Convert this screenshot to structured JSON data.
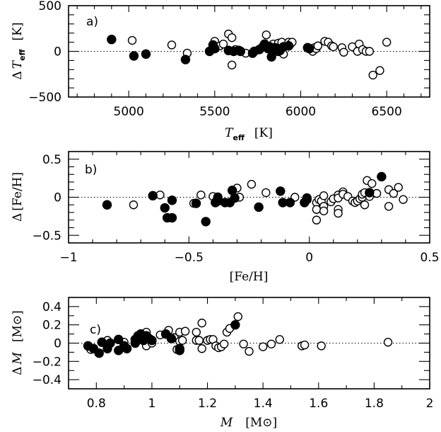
{
  "chart_data": [
    {
      "type": "scatter",
      "panel_label": "a)",
      "xlabel_main": "T",
      "xlabel_sub": "eff",
      "xlabel_unit": "[K]",
      "ylabel_prefix": "Δ",
      "ylabel_main": "T",
      "ylabel_sub": "eff",
      "ylabel_unit": "[K]",
      "xlim": [
        4650,
        6750
      ],
      "ylim": [
        -500,
        500
      ],
      "xticks_major": [
        5000,
        5500,
        6000,
        6500
      ],
      "xtick_labels": [
        "5000",
        "5500",
        "6000",
        "6500"
      ],
      "xtick_minor_step": 100,
      "yticks_major": [
        -500,
        0,
        500
      ],
      "ytick_labels": [
        "−500",
        "0",
        "500"
      ],
      "ytick_minor_step": 100,
      "reference_line": 0,
      "series": [
        {
          "name": "filled",
          "marker": "filled-circle",
          "points": [
            [
              4900,
              130
            ],
            [
              5030,
              -50
            ],
            [
              5100,
              -30
            ],
            [
              5330,
              -90
            ],
            [
              5470,
              0
            ],
            [
              5490,
              70
            ],
            [
              5500,
              30
            ],
            [
              5580,
              10
            ],
            [
              5610,
              0
            ],
            [
              5640,
              10
            ],
            [
              5650,
              0
            ],
            [
              5720,
              -20
            ],
            [
              5730,
              0
            ],
            [
              5760,
              20
            ],
            [
              5780,
              50
            ],
            [
              5790,
              80
            ],
            [
              5800,
              60
            ],
            [
              5810,
              30
            ],
            [
              5820,
              50
            ],
            [
              5830,
              -60
            ],
            [
              5840,
              20
            ],
            [
              5850,
              40
            ],
            [
              5870,
              0
            ],
            [
              5880,
              10
            ],
            [
              5900,
              50
            ],
            [
              5930,
              60
            ],
            [
              6040,
              40
            ],
            [
              6050,
              30
            ]
          ]
        },
        {
          "name": "open",
          "marker": "open-circle",
          "points": [
            [
              5020,
              120
            ],
            [
              5250,
              70
            ],
            [
              5340,
              -20
            ],
            [
              5500,
              110
            ],
            [
              5530,
              60
            ],
            [
              5550,
              80
            ],
            [
              5580,
              190
            ],
            [
              5600,
              150
            ],
            [
              5600,
              -150
            ],
            [
              5620,
              20
            ],
            [
              5680,
              -20
            ],
            [
              5800,
              180
            ],
            [
              5840,
              80
            ],
            [
              5870,
              90
            ],
            [
              5890,
              100
            ],
            [
              5900,
              -30
            ],
            [
              5930,
              100
            ],
            [
              5940,
              80
            ],
            [
              5950,
              100
            ],
            [
              6060,
              30
            ],
            [
              6070,
              0
            ],
            [
              6080,
              40
            ],
            [
              6090,
              30
            ],
            [
              6100,
              60
            ],
            [
              6140,
              110
            ],
            [
              6160,
              100
            ],
            [
              6180,
              60
            ],
            [
              6190,
              50
            ],
            [
              6240,
              40
            ],
            [
              6250,
              -10
            ],
            [
              6300,
              50
            ],
            [
              6330,
              0
            ],
            [
              6340,
              80
            ],
            [
              6360,
              20
            ],
            [
              6380,
              0
            ],
            [
              6400,
              0
            ],
            [
              6420,
              -260
            ],
            [
              6460,
              -210
            ],
            [
              6500,
              100
            ]
          ]
        }
      ]
    },
    {
      "type": "scatter",
      "panel_label": "b)",
      "xlabel": "[Fe/H]",
      "ylabel_prefix": "Δ",
      "ylabel": "[Fe/H]",
      "xlim": [
        -1.0,
        0.5
      ],
      "ylim": [
        -0.6,
        0.6
      ],
      "xticks_major": [
        -1,
        -0.5,
        0,
        0.5
      ],
      "xtick_labels": [
        "−1",
        "−0.5",
        "0",
        "0.5"
      ],
      "xtick_minor_step": 0.1,
      "yticks_major": [
        -0.5,
        0,
        0.5
      ],
      "ytick_labels": [
        "−0.5",
        "0",
        "0.5"
      ],
      "ytick_minor_step": 0.1,
      "reference_line": 0,
      "series": [
        {
          "name": "filled",
          "marker": "filled-circle",
          "points": [
            [
              -0.84,
              -0.1
            ],
            [
              -0.65,
              0.02
            ],
            [
              -0.6,
              -0.14
            ],
            [
              -0.59,
              -0.27
            ],
            [
              -0.57,
              -0.27
            ],
            [
              -0.57,
              -0.04
            ],
            [
              -0.47,
              -0.08
            ],
            [
              -0.43,
              -0.32
            ],
            [
              -0.39,
              -0.07
            ],
            [
              -0.38,
              0.0
            ],
            [
              -0.38,
              -0.05
            ],
            [
              -0.35,
              -0.07
            ],
            [
              -0.33,
              -0.07
            ],
            [
              -0.32,
              0.09
            ],
            [
              -0.31,
              -0.01
            ],
            [
              -0.21,
              -0.13
            ],
            [
              -0.12,
              0.08
            ],
            [
              -0.11,
              -0.07
            ],
            [
              -0.08,
              -0.07
            ],
            [
              -0.02,
              -0.07
            ],
            [
              -0.01,
              -0.03
            ],
            [
              -0.01,
              -0.01
            ],
            [
              0.25,
              0.06
            ],
            [
              0.3,
              0.27
            ]
          ]
        },
        {
          "name": "open",
          "marker": "open-circle",
          "points": [
            [
              -0.73,
              -0.1
            ],
            [
              -0.62,
              0.03
            ],
            [
              -0.48,
              -0.08
            ],
            [
              -0.47,
              -0.08
            ],
            [
              -0.45,
              0.03
            ],
            [
              -0.4,
              0.01
            ],
            [
              -0.39,
              -0.06
            ],
            [
              -0.3,
              0.12
            ],
            [
              -0.29,
              0.0
            ],
            [
              -0.24,
              0.17
            ],
            [
              -0.18,
              0.06
            ],
            [
              -0.06,
              0.0
            ],
            [
              0.03,
              -0.07
            ],
            [
              0.03,
              -0.16
            ],
            [
              0.03,
              -0.3
            ],
            [
              0.04,
              -0.03
            ],
            [
              0.05,
              -0.05
            ],
            [
              0.06,
              0.02
            ],
            [
              0.06,
              -0.12
            ],
            [
              0.06,
              -0.18
            ],
            [
              0.09,
              -0.06
            ],
            [
              0.1,
              -0.02
            ],
            [
              0.12,
              0.03
            ],
            [
              0.12,
              -0.01
            ],
            [
              0.12,
              -0.16
            ],
            [
              0.12,
              -0.21
            ],
            [
              0.14,
              0.07
            ],
            [
              0.14,
              0.04
            ],
            [
              0.16,
              0.01
            ],
            [
              0.18,
              -0.05
            ],
            [
              0.19,
              -0.07
            ],
            [
              0.2,
              -0.05
            ],
            [
              0.21,
              -0.02
            ],
            [
              0.22,
              0.0
            ],
            [
              0.22,
              0.04
            ],
            [
              0.23,
              0.06
            ],
            [
              0.23,
              -0.1
            ],
            [
              0.24,
              0.22
            ],
            [
              0.25,
              0.01
            ],
            [
              0.26,
              0.18
            ],
            [
              0.28,
              0.05
            ],
            [
              0.33,
              0.1
            ],
            [
              0.33,
              -0.12
            ],
            [
              0.35,
              0.05
            ],
            [
              0.37,
              0.13
            ],
            [
              0.39,
              -0.03
            ]
          ]
        }
      ]
    },
    {
      "type": "scatter",
      "panel_label": "c)",
      "xlabel_main": "M",
      "xlabel_unit": "[M⊙]",
      "ylabel_prefix": "Δ",
      "ylabel_main": "M",
      "ylabel_unit": "[M⊙]",
      "xlim": [
        0.7,
        2.0
      ],
      "ylim": [
        -0.5,
        0.5
      ],
      "xticks_major": [
        0.8,
        1.0,
        1.2,
        1.4,
        1.6,
        1.8,
        2.0
      ],
      "xtick_labels": [
        "0.8",
        "1",
        "1.2",
        "1.4",
        "1.6",
        "1.8",
        "2"
      ],
      "xtick_minor_step": 0.1,
      "yticks_major": [
        -0.4,
        -0.2,
        0,
        0.2,
        0.4
      ],
      "ytick_labels": [
        "−0.4",
        "−0.2",
        "0",
        "0.2",
        "0.4"
      ],
      "ytick_minor_step": 0.1,
      "reference_line": 0,
      "series": [
        {
          "name": "filled",
          "marker": "filled-circle",
          "points": [
            [
              0.77,
              -0.03
            ],
            [
              0.79,
              -0.06
            ],
            [
              0.81,
              -0.11
            ],
            [
              0.82,
              0.01
            ],
            [
              0.84,
              -0.06
            ],
            [
              0.85,
              0.0
            ],
            [
              0.88,
              0.04
            ],
            [
              0.88,
              -0.08
            ],
            [
              0.9,
              -0.03
            ],
            [
              0.91,
              -0.06
            ],
            [
              0.94,
              0.0
            ],
            [
              0.94,
              0.04
            ],
            [
              0.95,
              0.08
            ],
            [
              0.96,
              0.1
            ],
            [
              0.97,
              0.03
            ],
            [
              0.98,
              0.08
            ],
            [
              0.99,
              0.05
            ],
            [
              1.0,
              0.03
            ],
            [
              1.05,
              0.1
            ],
            [
              1.07,
              0.05
            ],
            [
              1.1,
              -0.06
            ],
            [
              1.1,
              -0.08
            ],
            [
              1.3,
              0.2
            ]
          ]
        },
        {
          "name": "open",
          "marker": "open-circle",
          "points": [
            [
              0.78,
              -0.07
            ],
            [
              0.84,
              0.03
            ],
            [
              0.9,
              0.01
            ],
            [
              0.96,
              0.04
            ],
            [
              0.98,
              0.12
            ],
            [
              0.98,
              -0.03
            ],
            [
              1.0,
              0.0
            ],
            [
              1.03,
              0.09
            ],
            [
              1.06,
              0.14
            ],
            [
              1.08,
              0.06
            ],
            [
              1.09,
              -0.07
            ],
            [
              1.1,
              0.12
            ],
            [
              1.1,
              0.02
            ],
            [
              1.11,
              0.03
            ],
            [
              1.12,
              0.13
            ],
            [
              1.16,
              0.12
            ],
            [
              1.16,
              0.03
            ],
            [
              1.17,
              0.03
            ],
            [
              1.18,
              0.22
            ],
            [
              1.18,
              -0.06
            ],
            [
              1.2,
              0.03
            ],
            [
              1.21,
              0.04
            ],
            [
              1.22,
              0.04
            ],
            [
              1.23,
              -0.03
            ],
            [
              1.24,
              -0.05
            ],
            [
              1.25,
              -0.04
            ],
            [
              1.26,
              -0.01
            ],
            [
              1.27,
              0.12
            ],
            [
              1.28,
              0.16
            ],
            [
              1.31,
              0.29
            ],
            [
              1.33,
              -0.01
            ],
            [
              1.35,
              -0.09
            ],
            [
              1.4,
              -0.04
            ],
            [
              1.43,
              -0.01
            ],
            [
              1.46,
              0.04
            ],
            [
              1.54,
              -0.03
            ],
            [
              1.55,
              -0.02
            ],
            [
              1.61,
              -0.03
            ],
            [
              1.85,
              0.01
            ]
          ]
        }
      ]
    }
  ]
}
